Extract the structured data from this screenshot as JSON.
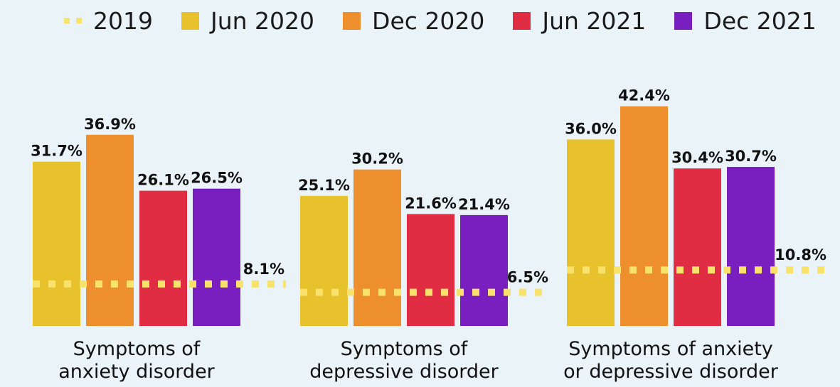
{
  "chart_data": {
    "type": "bar",
    "categories": [
      [
        "Symptoms of",
        "anxiety disorder"
      ],
      [
        "Symptoms of",
        "depressive disorder"
      ],
      [
        "Symptoms of anxiety",
        "or depressive disorder"
      ]
    ],
    "series": [
      {
        "name": "Jun 2020",
        "color": "#e8c22d",
        "values": [
          31.7,
          25.1,
          36.0
        ],
        "labels": [
          "31.7%",
          "25.1%",
          "36.0%"
        ]
      },
      {
        "name": "Dec 2020",
        "color": "#ed8f2d",
        "values": [
          36.9,
          30.2,
          42.4
        ],
        "labels": [
          "36.9%",
          "30.2%",
          "42.4%"
        ]
      },
      {
        "name": "Jun 2021",
        "color": "#e02d43",
        "values": [
          26.1,
          21.6,
          30.4
        ],
        "labels": [
          "26.1%",
          "21.6%",
          "30.4%"
        ]
      },
      {
        "name": "Dec 2021",
        "color": "#7a1fbf",
        "values": [
          26.5,
          21.4,
          30.7
        ],
        "labels": [
          "26.5%",
          "21.4%",
          "30.7%"
        ]
      }
    ],
    "baseline": {
      "name": "2019",
      "color": "#f9e26b",
      "style": "dashed",
      "values": [
        8.1,
        6.5,
        10.8
      ],
      "labels": [
        "8.1%",
        "6.5%",
        "10.8%"
      ]
    },
    "ylim": [
      0,
      45
    ],
    "legend": "top",
    "grid": false,
    "xlabel": "",
    "ylabel": ""
  }
}
